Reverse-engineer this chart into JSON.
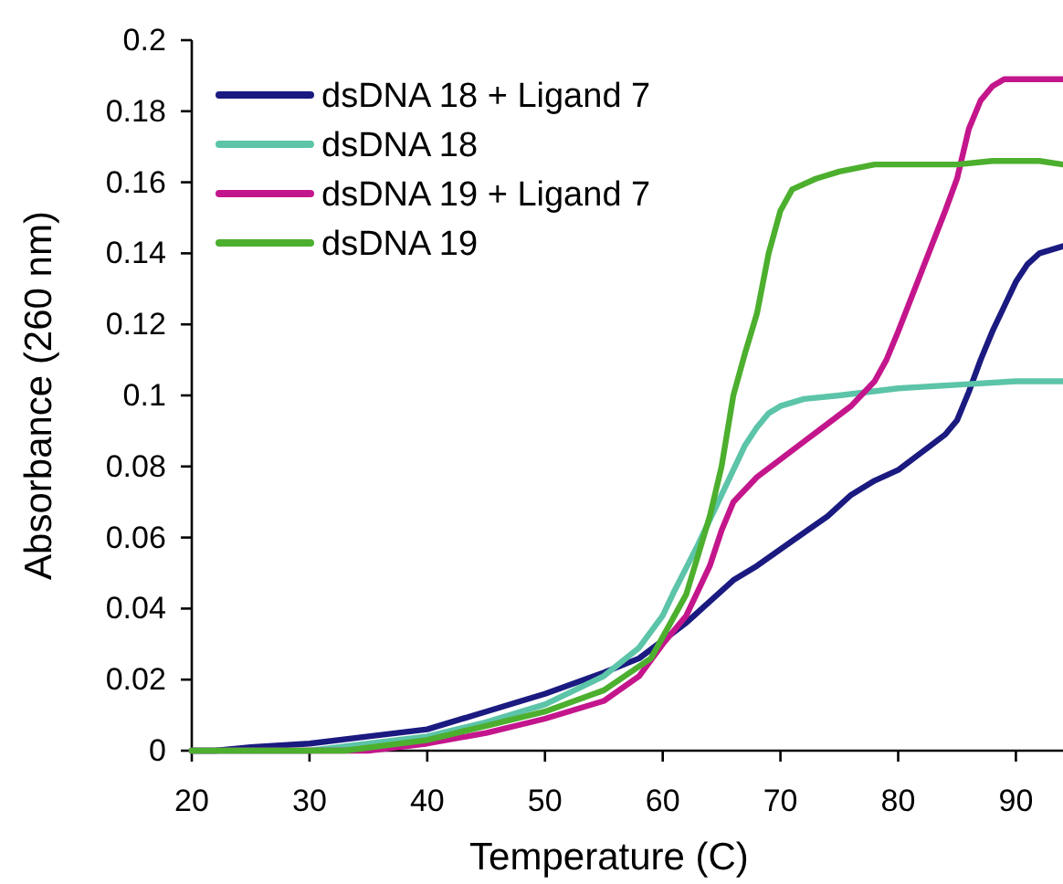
{
  "chart_data": {
    "type": "line",
    "xlabel": "Temperature (C)",
    "ylabel": "Absorbance (260 nm)",
    "xlim": [
      20,
      94
    ],
    "xticks": [
      20,
      30,
      40,
      50,
      60,
      70,
      80,
      90
    ],
    "ylim": [
      0,
      0.2
    ],
    "yticks": [
      0,
      0.02,
      0.04,
      0.06,
      0.08,
      0.1,
      0.12,
      0.14,
      0.16,
      0.18,
      0.2
    ],
    "legend": "top left",
    "grid": false,
    "marker": "none",
    "line_style": "solid",
    "series": [
      {
        "name": "dsDNA 18 + Ligand 7",
        "color": "#1a1a80",
        "x": [
          20,
          22,
          25,
          30,
          35,
          40,
          45,
          50,
          55,
          58,
          60,
          62,
          64,
          66,
          68,
          71,
          74,
          76,
          78,
          80,
          82,
          84,
          85,
          86,
          87,
          88,
          89,
          90,
          91,
          92,
          94
        ],
        "values": [
          0,
          0,
          0.001,
          0.002,
          0.004,
          0.006,
          0.011,
          0.016,
          0.022,
          0.026,
          0.031,
          0.036,
          0.042,
          0.048,
          0.052,
          0.059,
          0.066,
          0.072,
          0.076,
          0.079,
          0.084,
          0.089,
          0.093,
          0.101,
          0.11,
          0.118,
          0.125,
          0.132,
          0.137,
          0.14,
          0.142
        ]
      },
      {
        "name": "dsDNA 18",
        "color": "#5cc4a8",
        "x": [
          20,
          30,
          35,
          40,
          45,
          50,
          55,
          58,
          60,
          61,
          63,
          64,
          66,
          67,
          68,
          69,
          70,
          72,
          75,
          80,
          85,
          90,
          94
        ],
        "values": [
          0,
          0,
          0.002,
          0.004,
          0.008,
          0.013,
          0.021,
          0.029,
          0.038,
          0.045,
          0.058,
          0.065,
          0.079,
          0.086,
          0.091,
          0.095,
          0.097,
          0.099,
          0.1,
          0.102,
          0.103,
          0.104,
          0.104
        ]
      },
      {
        "name": "dsDNA 19 + Ligand 7",
        "color": "#c4168c",
        "x": [
          20,
          35,
          40,
          45,
          50,
          55,
          58,
          60,
          62,
          64,
          65,
          66,
          68,
          70,
          72,
          74,
          76,
          78,
          79,
          80,
          82,
          84,
          85,
          86,
          87,
          88,
          89,
          94
        ],
        "values": [
          0,
          0,
          0.002,
          0.005,
          0.009,
          0.014,
          0.021,
          0.03,
          0.038,
          0.052,
          0.062,
          0.07,
          0.077,
          0.082,
          0.087,
          0.092,
          0.097,
          0.104,
          0.11,
          0.118,
          0.135,
          0.152,
          0.161,
          0.175,
          0.183,
          0.187,
          0.189,
          0.189
        ]
      },
      {
        "name": "dsDNA 19",
        "color": "#4caf2e",
        "x": [
          20,
          33,
          40,
          45,
          50,
          55,
          59,
          62,
          64,
          65,
          66,
          67,
          68,
          69,
          70,
          71,
          73,
          75,
          78,
          85,
          88,
          92,
          94
        ],
        "values": [
          0,
          0,
          0.003,
          0.007,
          0.011,
          0.017,
          0.026,
          0.044,
          0.066,
          0.08,
          0.1,
          0.112,
          0.123,
          0.14,
          0.152,
          0.158,
          0.161,
          0.163,
          0.165,
          0.165,
          0.166,
          0.166,
          0.165
        ]
      }
    ]
  }
}
